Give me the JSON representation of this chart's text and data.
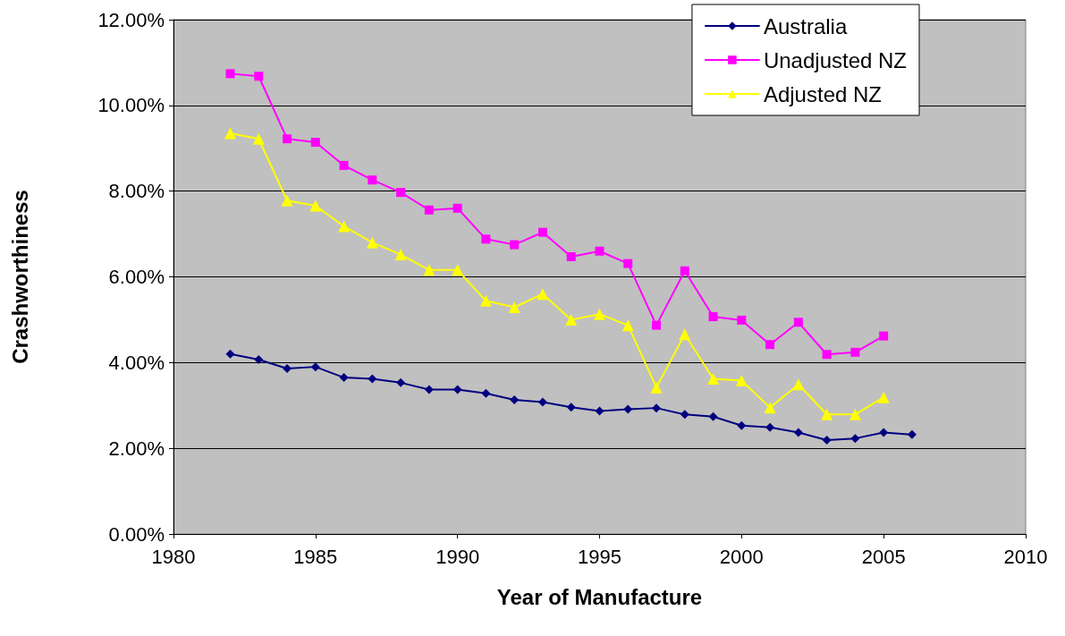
{
  "chart_data": {
    "type": "line",
    "xlabel": "Year of Manufacture",
    "ylabel": "Crashworthiness",
    "x": [
      1982,
      1983,
      1984,
      1985,
      1986,
      1987,
      1988,
      1989,
      1990,
      1991,
      1992,
      1993,
      1994,
      1995,
      1996,
      1997,
      1998,
      1999,
      2000,
      2001,
      2002,
      2003,
      2004,
      2005,
      2006
    ],
    "series": [
      {
        "name": "Australia",
        "color": "#000080",
        "marker": "diamond",
        "values": [
          4.2,
          4.07,
          3.86,
          3.9,
          3.65,
          3.62,
          3.53,
          3.37,
          3.37,
          3.28,
          3.13,
          3.08,
          2.96,
          2.87,
          2.91,
          2.94,
          2.79,
          2.74,
          2.53,
          2.49,
          2.37,
          2.19,
          2.23,
          2.37,
          2.32
        ]
      },
      {
        "name": "Unadjusted NZ",
        "color": "#ff00ff",
        "marker": "square",
        "values": [
          10.74,
          10.68,
          9.22,
          9.14,
          8.6,
          8.26,
          7.97,
          7.56,
          7.6,
          6.88,
          6.75,
          7.04,
          6.47,
          6.6,
          6.31,
          4.87,
          6.14,
          5.07,
          4.99,
          4.42,
          4.94,
          4.19,
          4.24,
          4.62,
          null
        ]
      },
      {
        "name": "Adjusted NZ",
        "color": "#ffff00",
        "marker": "triangle",
        "values": [
          9.35,
          9.22,
          7.78,
          7.66,
          7.18,
          6.8,
          6.52,
          6.16,
          6.16,
          5.44,
          5.29,
          5.6,
          5.0,
          5.13,
          4.87,
          3.42,
          4.66,
          3.62,
          3.58,
          2.95,
          3.49,
          2.79,
          2.79,
          3.19,
          null
        ]
      }
    ],
    "xlim": [
      1980,
      2010
    ],
    "xticks": [
      1980,
      1985,
      1990,
      1995,
      2000,
      2005,
      2010
    ],
    "ylim": [
      0,
      12
    ],
    "yticks": [
      {
        "value": 0,
        "label": "0.00%"
      },
      {
        "value": 2,
        "label": "2.00%"
      },
      {
        "value": 4,
        "label": "4.00%"
      },
      {
        "value": 6,
        "label": "6.00%"
      },
      {
        "value": 8,
        "label": "8.00%"
      },
      {
        "value": 10,
        "label": "10.00%"
      },
      {
        "value": 12,
        "label": "12.00%"
      }
    ],
    "grid": "y",
    "legend": "top right",
    "line_style": "solid"
  }
}
